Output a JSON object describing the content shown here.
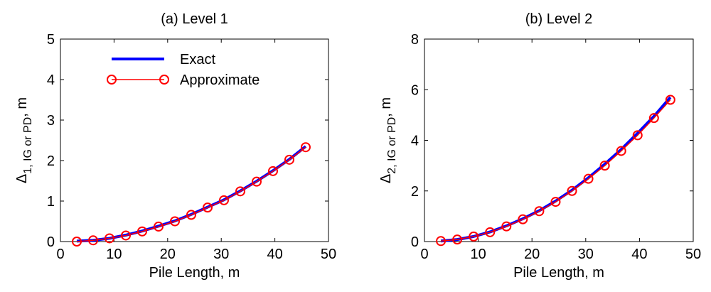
{
  "chart_data": [
    {
      "type": "line",
      "title": "(a) Level 1",
      "xlabel": "Pile Length, m",
      "ylabel": {
        "base": "Δ",
        "sub": "1, IG or PD",
        "suffix": ", m"
      },
      "xlim": [
        0,
        50
      ],
      "ylim": [
        0,
        5
      ],
      "xticks": [
        0,
        10,
        20,
        30,
        40,
        50
      ],
      "yticks": [
        0,
        1,
        2,
        3,
        4,
        5
      ],
      "legend": {
        "placement": "top-left"
      },
      "series": [
        {
          "name": "Exact",
          "style": "line",
          "color": "#0000ff",
          "x": [
            3.05,
            6.1,
            9.15,
            12.2,
            15.25,
            18.3,
            21.35,
            24.4,
            27.45,
            30.5,
            33.55,
            36.6,
            39.65,
            42.7,
            45.75
          ],
          "y": [
            0.01,
            0.03,
            0.08,
            0.16,
            0.26,
            0.38,
            0.51,
            0.67,
            0.85,
            1.03,
            1.25,
            1.49,
            1.75,
            2.03,
            2.35
          ]
        },
        {
          "name": "Approximate",
          "style": "line-marker",
          "color": "#ff0000",
          "marker": "circle",
          "x": [
            3.05,
            6.1,
            9.15,
            12.2,
            15.25,
            18.3,
            21.35,
            24.4,
            27.45,
            30.5,
            33.55,
            36.6,
            39.65,
            42.7,
            45.75
          ],
          "y": [
            0.0,
            0.03,
            0.08,
            0.15,
            0.25,
            0.37,
            0.5,
            0.66,
            0.84,
            1.02,
            1.24,
            1.48,
            1.74,
            2.02,
            2.33
          ]
        }
      ]
    },
    {
      "type": "line",
      "title": "(b) Level 2",
      "xlabel": "Pile Length, m",
      "ylabel": {
        "base": "Δ",
        "sub": "2, IG or PD",
        "suffix": ", m"
      },
      "xlim": [
        0,
        50
      ],
      "ylim": [
        0,
        8
      ],
      "xticks": [
        0,
        10,
        20,
        30,
        40,
        50
      ],
      "yticks": [
        0,
        2,
        4,
        6,
        8
      ],
      "series": [
        {
          "name": "Exact",
          "style": "line",
          "color": "#0000ff",
          "x": [
            3.05,
            6.1,
            9.15,
            12.2,
            15.25,
            18.3,
            21.35,
            24.4,
            27.45,
            30.5,
            33.55,
            36.6,
            39.65,
            42.7,
            45.75
          ],
          "y": [
            0.02,
            0.08,
            0.2,
            0.38,
            0.62,
            0.9,
            1.22,
            1.6,
            2.03,
            2.52,
            3.06,
            3.64,
            4.28,
            4.95,
            5.7
          ]
        },
        {
          "name": "Approximate",
          "style": "line-marker",
          "color": "#ff0000",
          "marker": "circle",
          "x": [
            3.05,
            6.1,
            9.15,
            12.2,
            15.25,
            18.3,
            21.35,
            24.4,
            27.45,
            30.5,
            33.55,
            36.6,
            39.65,
            42.7,
            45.75
          ],
          "y": [
            0.02,
            0.08,
            0.2,
            0.37,
            0.6,
            0.88,
            1.2,
            1.57,
            2.0,
            2.48,
            3.0,
            3.58,
            4.2,
            4.88,
            5.6
          ]
        }
      ]
    }
  ]
}
